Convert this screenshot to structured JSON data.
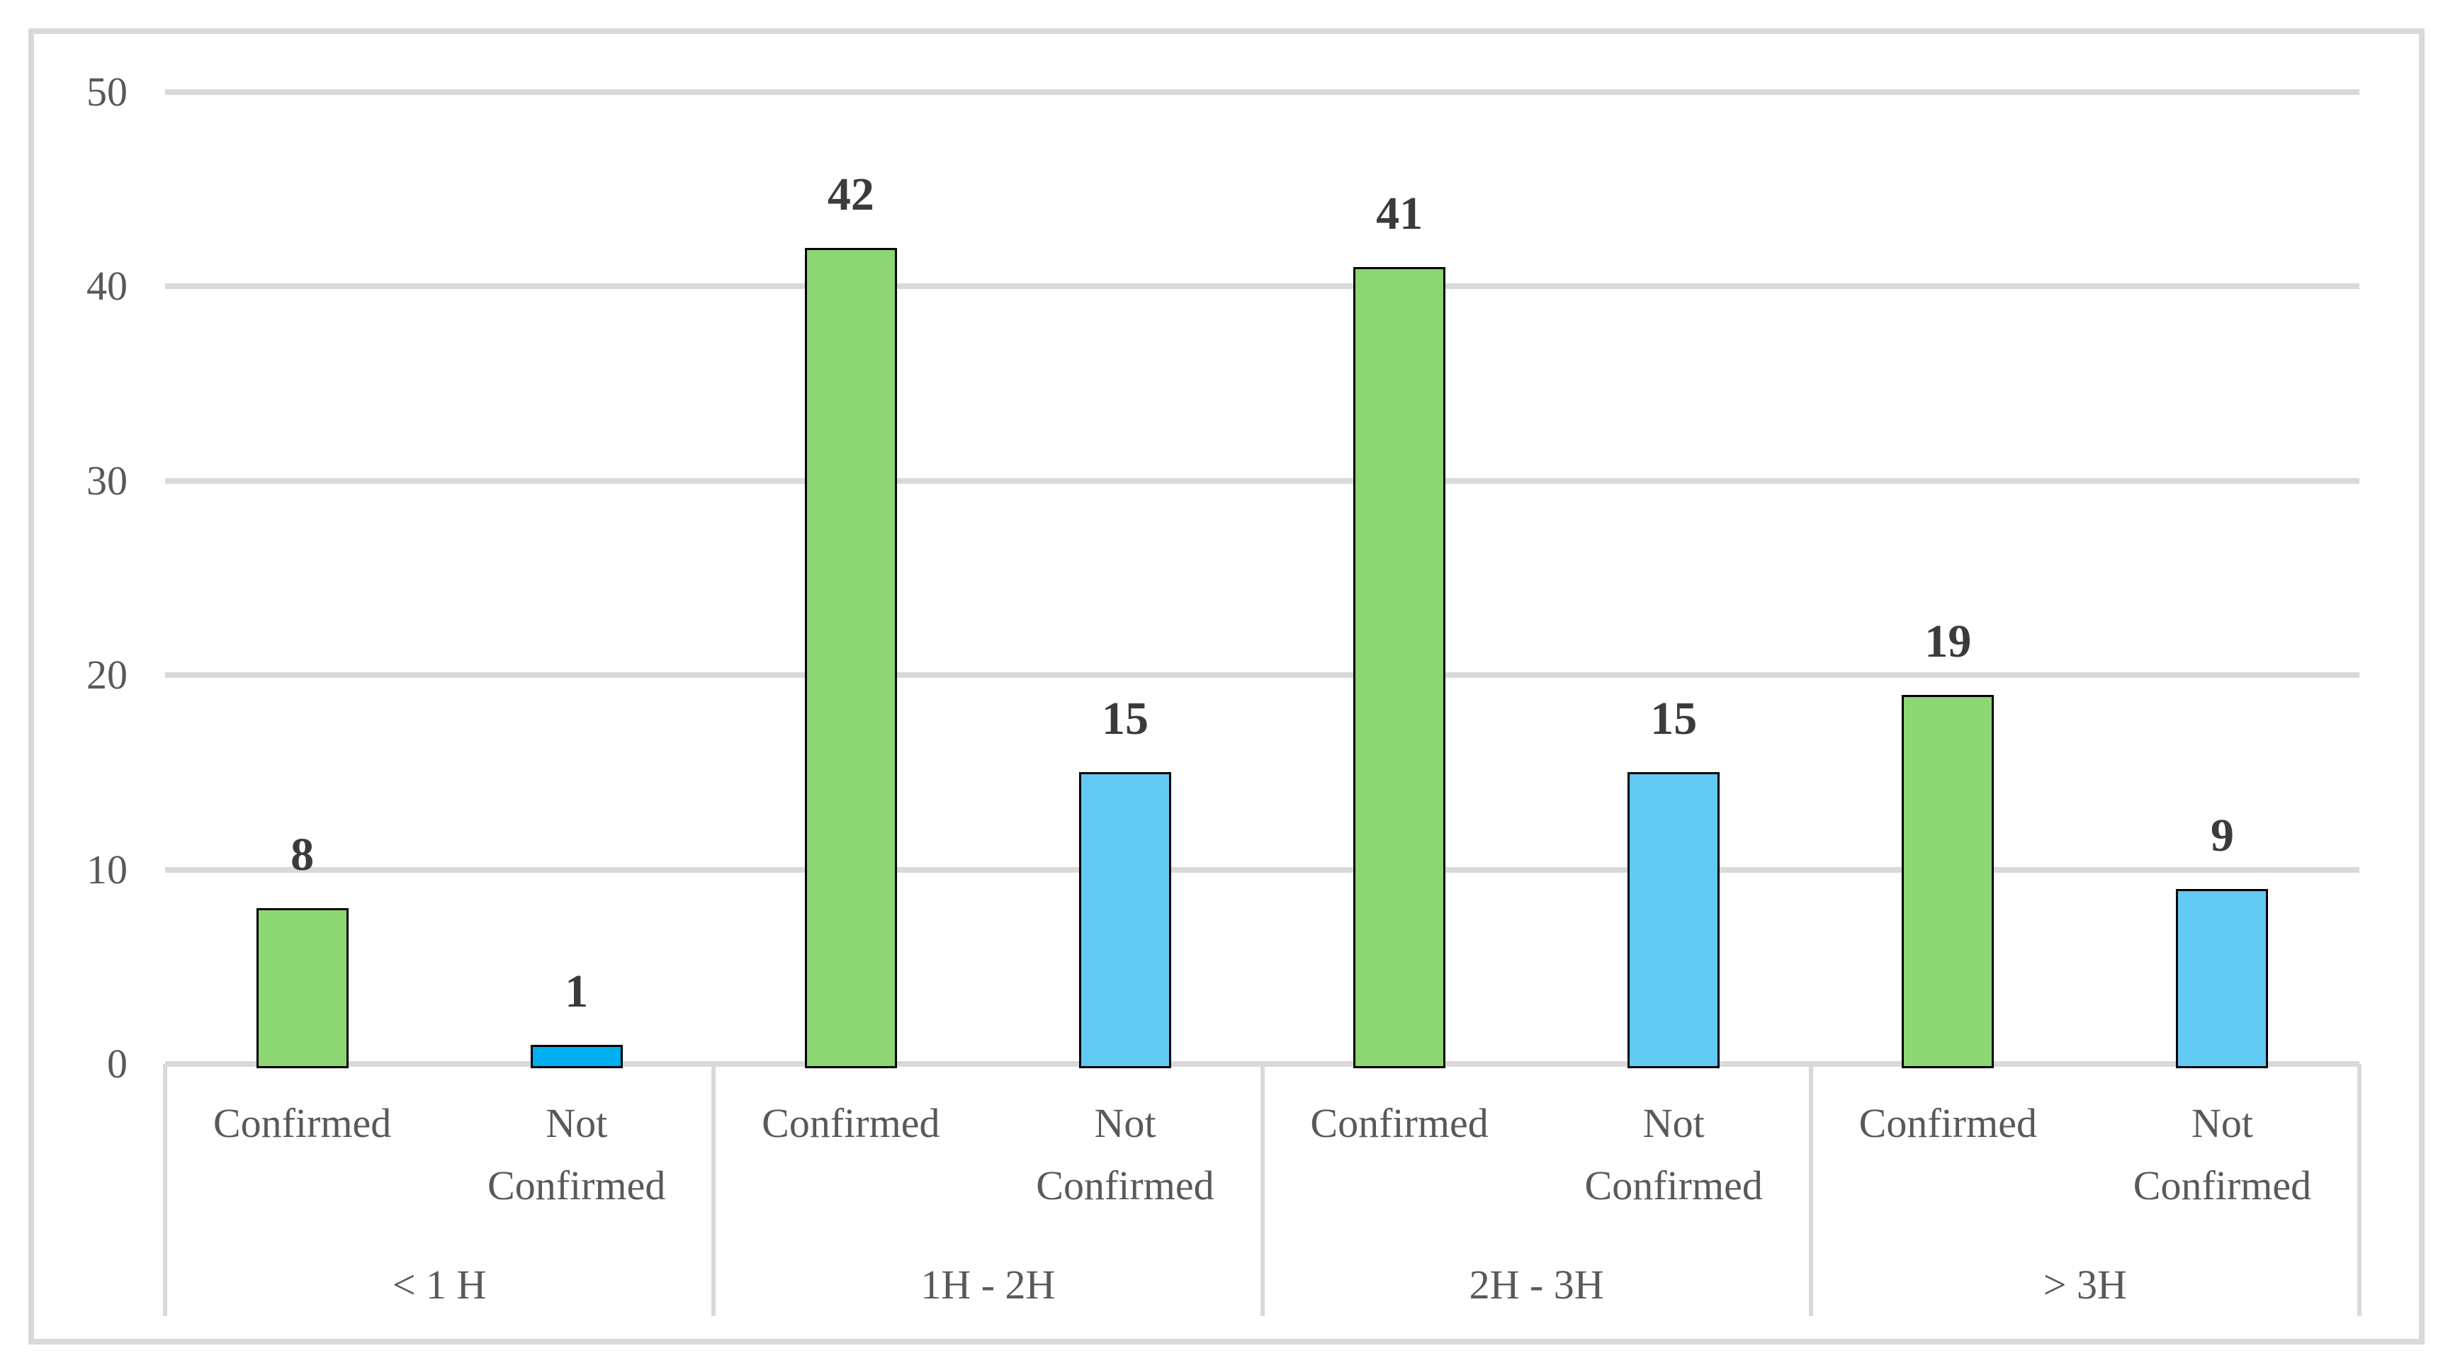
{
  "chart_data": {
    "type": "bar",
    "title": "",
    "groups": [
      "< 1 H",
      "1H - 2H",
      "2H - 3H",
      "> 3H"
    ],
    "bar_labels_per_group": [
      "Confirmed",
      "Not Confirmed"
    ],
    "series": [
      {
        "name": "Confirmed",
        "color": "#8CD673",
        "values": [
          8,
          42,
          41,
          19
        ]
      },
      {
        "name": "Not Confirmed",
        "color": "#62C9F2",
        "point_colors": [
          "#00AEEF",
          "#62C9F2",
          "#62C9F2",
          "#62C9F2"
        ],
        "values": [
          1,
          15,
          15,
          9
        ]
      }
    ],
    "ylim": [
      0,
      50
    ],
    "yticks": [
      0,
      10,
      20,
      30,
      40,
      50
    ],
    "grid": true,
    "legend_position": "none",
    "data_labels_shown": true
  },
  "colors": {
    "background": "#FFFFFF",
    "frame_border": "#D9D9D9",
    "gridline": "#D9D9D9",
    "axis_divider": "#D9D9D9",
    "axis_text": "#595959",
    "data_label_text": "#3B3B3B",
    "bar_border": "#000000"
  }
}
